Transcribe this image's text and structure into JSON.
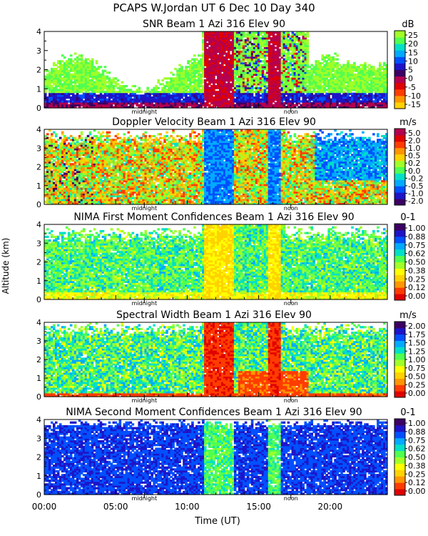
{
  "header": {
    "title": "PCAPS W.Jordan UT   6 Dec 10 Day 340",
    "ylabel": "Altitude (km)",
    "xlabel": "Time (UT)"
  },
  "x_axis": {
    "range": [
      0,
      24
    ],
    "tick_hours": [
      0,
      5,
      10,
      15,
      20
    ],
    "tick_labels": [
      "00:00",
      "05:00",
      "10:00",
      "15:00",
      "20:00"
    ],
    "annotations": [
      {
        "hour": 7.0,
        "label": "midnight"
      },
      {
        "hour": 17.25,
        "label": "noon"
      }
    ]
  },
  "chart_data": [
    {
      "type": "heatmap",
      "title": "SNR Beam 1 Azi 316 Elev 90",
      "unit": "dB",
      "ylabel": "Altitude (km)",
      "ylim": [
        0,
        4
      ],
      "y_ticks": [
        "0",
        "1",
        "2",
        "3",
        "4"
      ],
      "colorbar": {
        "labels": [
          "25",
          "20",
          "15",
          "10",
          "5",
          "0",
          "-5",
          "-10",
          "-15"
        ],
        "colors": [
          "#ffd200",
          "#ff9600",
          "#ff3c00",
          "#e00000",
          "#b40050",
          "#3c0064",
          "#1e14c8",
          "#0050ff",
          "#00aaff",
          "#00e0c8",
          "#50ff50",
          "#a0ff28"
        ]
      }
    },
    {
      "type": "heatmap",
      "title": "Doppler Velocity Beam 1 Azi 316 Elev 90",
      "unit": "m/s",
      "ylabel": "Altitude (km)",
      "ylim": [
        0,
        4
      ],
      "y_ticks": [
        "0",
        "1",
        "2",
        "3",
        "4"
      ],
      "colorbar": {
        "labels": [
          "5.0",
          "2.0",
          "1.0",
          "0.5",
          "0.2",
          "0.0",
          "-0.2",
          "-0.5",
          "-1.0",
          "-2.0"
        ],
        "colors": [
          "#3c0064",
          "#1e14c8",
          "#0050ff",
          "#00aaff",
          "#00e0c8",
          "#50ff50",
          "#a0ff28",
          "#ffd200",
          "#ff9600",
          "#ff3c00",
          "#e00000",
          "#b40050"
        ]
      }
    },
    {
      "type": "heatmap",
      "title": "NIMA First Moment Confidences Beam 1 Azi 316 Elev 90",
      "unit": "0-1",
      "ylabel": "Altitude (km)",
      "ylim": [
        0,
        4
      ],
      "y_ticks": [
        "0",
        "1",
        "2",
        "3",
        "4"
      ],
      "colorbar": {
        "labels": [
          "1.00",
          "0.88",
          "0.75",
          "0.62",
          "0.50",
          "0.38",
          "0.25",
          "0.12",
          "0.00"
        ],
        "colors": [
          "#e00000",
          "#ff3c00",
          "#ff9600",
          "#ffd200",
          "#ffff00",
          "#a0ff28",
          "#50ff50",
          "#00e0c8",
          "#00aaff",
          "#0050ff",
          "#1e14c8",
          "#3c0064"
        ]
      }
    },
    {
      "type": "heatmap",
      "title": "Spectral Width Beam 1 Azi 316 Elev 90",
      "unit": "m/s",
      "ylabel": "Altitude (km)",
      "ylim": [
        0,
        4
      ],
      "y_ticks": [
        "0",
        "1",
        "2",
        "3",
        "4"
      ],
      "colorbar": {
        "labels": [
          "2.00",
          "1.75",
          "1.50",
          "1.25",
          "1.00",
          "0.75",
          "0.50",
          "0.25",
          "0.00"
        ],
        "colors": [
          "#e00000",
          "#ff3c00",
          "#ff9600",
          "#ffd200",
          "#ffff00",
          "#a0ff28",
          "#50ff50",
          "#00e0c8",
          "#00aaff",
          "#0050ff",
          "#1e14c8",
          "#3c0064"
        ]
      }
    },
    {
      "type": "heatmap",
      "title": "NIMA Second Moment Confidences Beam 1 Azi 316 Elev 90",
      "unit": "0-1",
      "ylabel": "Altitude (km)",
      "ylim": [
        0,
        4
      ],
      "y_ticks": [
        "0",
        "1",
        "2",
        "3",
        "4"
      ],
      "colorbar": {
        "labels": [
          "1.00",
          "0.88",
          "0.75",
          "0.62",
          "0.50",
          "0.38",
          "0.25",
          "0.12",
          "0.00"
        ],
        "colors": [
          "#e00000",
          "#ff3c00",
          "#ff9600",
          "#ffd200",
          "#ffff00",
          "#a0ff28",
          "#50ff50",
          "#00e0c8",
          "#00aaff",
          "#0050ff",
          "#1e14c8",
          "#3c0064"
        ]
      }
    }
  ]
}
